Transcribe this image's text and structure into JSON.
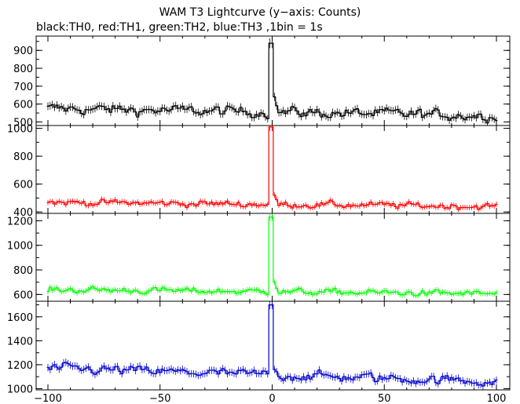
{
  "title": "WAM T3 Lightcurve (y−axis: Counts)",
  "subtitle": "black:TH0, red:TH1, green:TH2, blue:TH3 ,1bin = 1s",
  "chart_data": {
    "type": "line",
    "title": "WAM T3 Lightcurve (y−axis: Counts)",
    "subtitle": "black:TH0, red:TH1, green:TH2, blue:TH3 ,1bin = 1s",
    "x_range": [
      -100,
      100
    ],
    "x_ticks": [
      -100,
      -50,
      0,
      50,
      100
    ],
    "x_tick_labels": [
      "−100",
      "−50",
      "0",
      "50",
      "100"
    ],
    "panels": [
      {
        "name": "TH0",
        "color": "#000000",
        "ylim": [
          480,
          980
        ],
        "yticks": [
          500,
          600,
          700,
          800,
          900
        ],
        "baseline_start": 575,
        "baseline_end": 535,
        "noise": 28,
        "peak": 940,
        "post_peak": 640,
        "approx_points": [
          [
            -100,
            575
          ],
          [
            -75,
            570
          ],
          [
            -50,
            555
          ],
          [
            -25,
            545
          ],
          [
            -2,
            560
          ],
          [
            -1,
            940
          ],
          [
            1,
            640
          ],
          [
            25,
            545
          ],
          [
            50,
            545
          ],
          [
            75,
            540
          ],
          [
            100,
            535
          ]
        ]
      },
      {
        "name": "TH1",
        "color": "#ff0000",
        "ylim": [
          390,
          1020
        ],
        "yticks": [
          400,
          600,
          800,
          1000
        ],
        "baseline_start": 470,
        "baseline_end": 440,
        "noise": 22,
        "peak": 1010,
        "post_peak": 520,
        "approx_points": [
          [
            -100,
            470
          ],
          [
            -75,
            470
          ],
          [
            -50,
            465
          ],
          [
            -25,
            460
          ],
          [
            -2,
            455
          ],
          [
            -1,
            1010
          ],
          [
            1,
            520
          ],
          [
            25,
            450
          ],
          [
            50,
            445
          ],
          [
            75,
            440
          ],
          [
            100,
            440
          ]
        ]
      },
      {
        "name": "TH2",
        "color": "#00ff00",
        "ylim": [
          545,
          1260
        ],
        "yticks": [
          600,
          800,
          1000,
          1200
        ],
        "baseline_start": 640,
        "baseline_end": 605,
        "noise": 24,
        "peak": 1230,
        "post_peak": 700,
        "approx_points": [
          [
            -100,
            640
          ],
          [
            -75,
            635
          ],
          [
            -50,
            630
          ],
          [
            -25,
            625
          ],
          [
            -2,
            625
          ],
          [
            -1,
            1230
          ],
          [
            1,
            700
          ],
          [
            25,
            615
          ],
          [
            50,
            610
          ],
          [
            75,
            605
          ],
          [
            100,
            605
          ]
        ]
      },
      {
        "name": "TH3",
        "color": "#0000cc",
        "ylim": [
          990,
          1730
        ],
        "yticks": [
          1000,
          1200,
          1400,
          1600
        ],
        "baseline_start": 1170,
        "baseline_end": 1060,
        "noise": 38,
        "peak": 1700,
        "post_peak": 1160,
        "approx_points": [
          [
            -100,
            1170
          ],
          [
            -75,
            1165
          ],
          [
            -50,
            1140
          ],
          [
            -25,
            1130
          ],
          [
            -2,
            1130
          ],
          [
            -1,
            1700
          ],
          [
            1,
            1160
          ],
          [
            25,
            1110
          ],
          [
            50,
            1090
          ],
          [
            75,
            1075
          ],
          [
            100,
            1060
          ]
        ]
      }
    ],
    "grid": false,
    "legend": "none"
  }
}
